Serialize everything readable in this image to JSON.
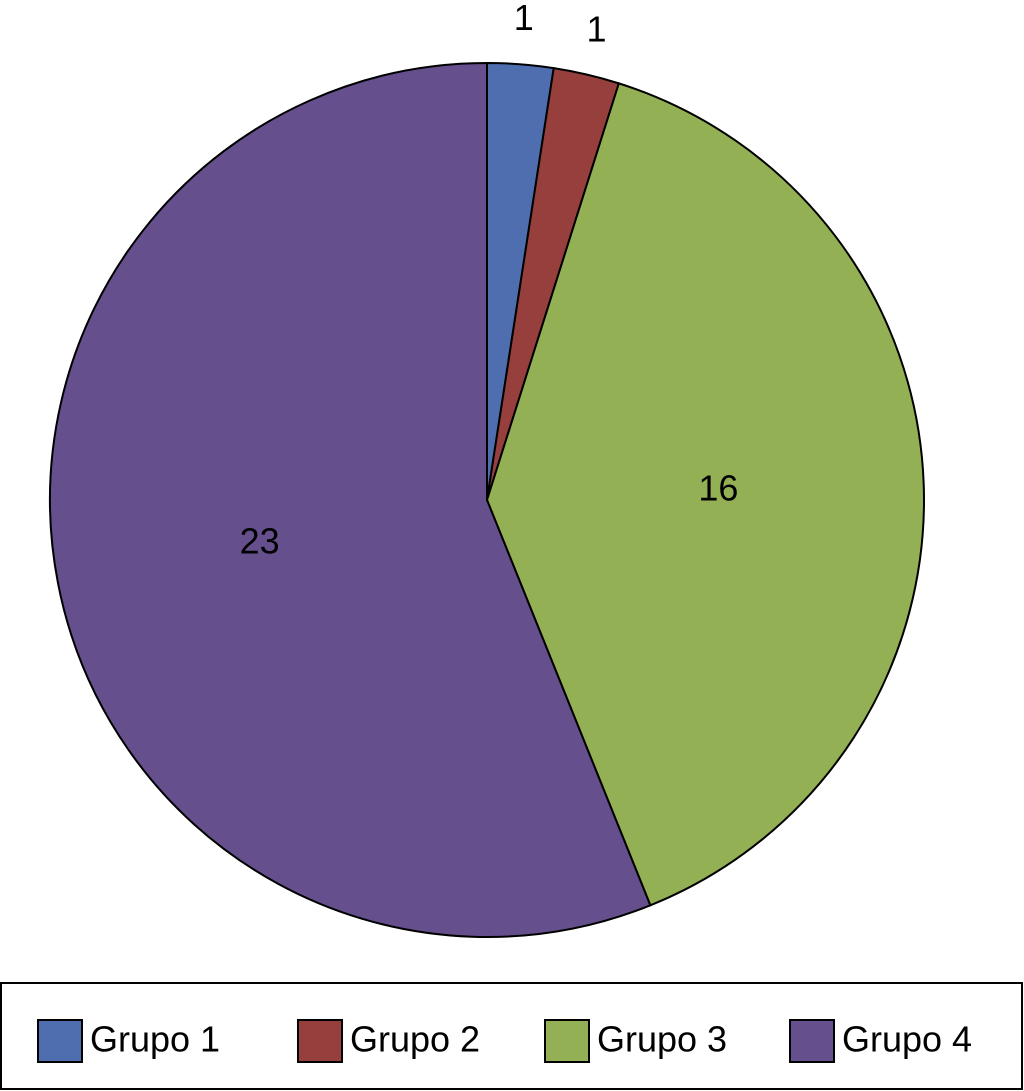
{
  "chart_data": {
    "type": "pie",
    "categories": [
      "Grupo 1",
      "Grupo 2",
      "Grupo 3",
      "Grupo 4"
    ],
    "values": [
      1,
      1,
      16,
      23
    ],
    "colors": [
      "#4f6eaf",
      "#973f3d",
      "#94b054",
      "#654f8d"
    ],
    "legend": "bottom"
  }
}
